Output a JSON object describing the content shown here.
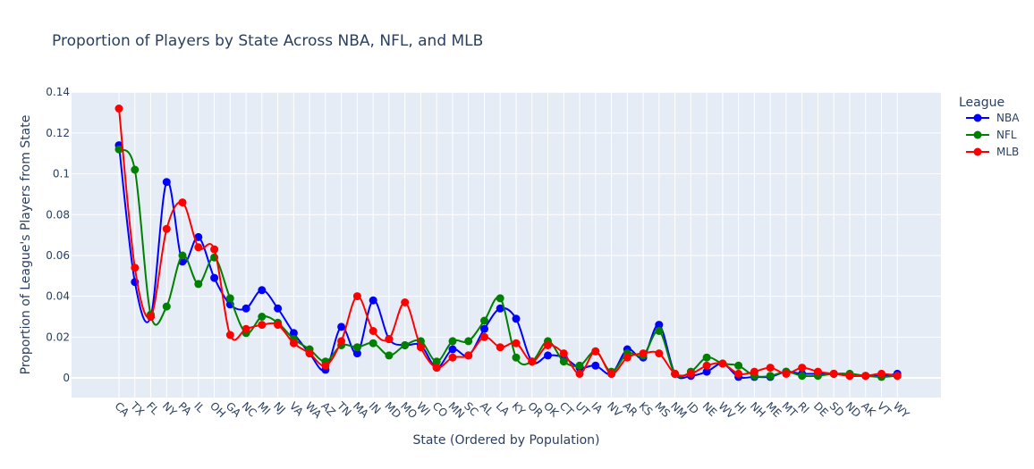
{
  "chart_data": {
    "type": "line",
    "title": "Proportion of Players by State Across NBA, NFL, and MLB",
    "xlabel": "State (Ordered by Population)",
    "ylabel": "Proportion of League's Players from State",
    "ylim": [
      -0.01,
      0.14
    ],
    "yticks": [
      0,
      0.02,
      0.04,
      0.06,
      0.08,
      0.1,
      0.12,
      0.14
    ],
    "ytick_labels": [
      "0",
      "0.02",
      "0.04",
      "0.06",
      "0.08",
      "0.1",
      "0.12",
      "0.14"
    ],
    "grid": true,
    "legend_title": "League",
    "legend_position": "top-right",
    "categories": [
      "CA",
      "TX",
      "FL",
      "NY",
      "PA",
      "IL",
      "OH",
      "GA",
      "NC",
      "MI",
      "NJ",
      "VA",
      "WA",
      "AZ",
      "TN",
      "MA",
      "IN",
      "MD",
      "MO",
      "WI",
      "CO",
      "MN",
      "SC",
      "AL",
      "LA",
      "KY",
      "OR",
      "OK",
      "CT",
      "UT",
      "IA",
      "NV",
      "AR",
      "KS",
      "MS",
      "NM",
      "ID",
      "NE",
      "WV",
      "HI",
      "NH",
      "ME",
      "MT",
      "RI",
      "DE",
      "SD",
      "ND",
      "AK",
      "VT",
      "WY"
    ],
    "series": [
      {
        "name": "NBA",
        "color": "#0000ff",
        "values": [
          0.114,
          0.047,
          0.03,
          0.096,
          0.057,
          0.069,
          0.049,
          0.036,
          0.034,
          0.043,
          0.034,
          0.022,
          0.012,
          0.004,
          0.025,
          0.012,
          0.038,
          0.019,
          0.016,
          0.016,
          0.005,
          0.014,
          0.011,
          0.024,
          0.034,
          0.029,
          0.008,
          0.011,
          0.01,
          0.005,
          0.006,
          0.002,
          0.014,
          0.01,
          0.026,
          0.002,
          0.001,
          0.003,
          0.007,
          0.0005,
          0.0005,
          0.0005,
          0.003,
          0.002,
          0.002,
          0.002,
          0.001,
          0.001,
          0.001,
          0.002
        ]
      },
      {
        "name": "NFL",
        "color": "#008000",
        "values": [
          0.112,
          0.102,
          0.031,
          0.035,
          0.06,
          0.046,
          0.059,
          0.039,
          0.022,
          0.03,
          0.027,
          0.019,
          0.014,
          0.008,
          0.016,
          0.015,
          0.017,
          0.011,
          0.016,
          0.018,
          0.008,
          0.018,
          0.018,
          0.028,
          0.039,
          0.01,
          0.008,
          0.018,
          0.008,
          0.006,
          0.013,
          0.003,
          0.012,
          0.011,
          0.023,
          0.002,
          0.003,
          0.01,
          0.007,
          0.006,
          0.001,
          0.001,
          0.003,
          0.001,
          0.001,
          0.002,
          0.002,
          0.001,
          0.0005,
          0.001
        ]
      },
      {
        "name": "MLB",
        "color": "#ff0000",
        "values": [
          0.132,
          0.054,
          0.03,
          0.073,
          0.086,
          0.064,
          0.063,
          0.021,
          0.024,
          0.026,
          0.026,
          0.017,
          0.012,
          0.006,
          0.018,
          0.04,
          0.023,
          0.019,
          0.037,
          0.015,
          0.005,
          0.01,
          0.011,
          0.02,
          0.015,
          0.017,
          0.008,
          0.016,
          0.012,
          0.002,
          0.013,
          0.002,
          0.01,
          0.012,
          0.012,
          0.002,
          0.002,
          0.006,
          0.007,
          0.002,
          0.003,
          0.005,
          0.002,
          0.005,
          0.003,
          0.002,
          0.001,
          0.001,
          0.002,
          0.001
        ]
      }
    ]
  }
}
